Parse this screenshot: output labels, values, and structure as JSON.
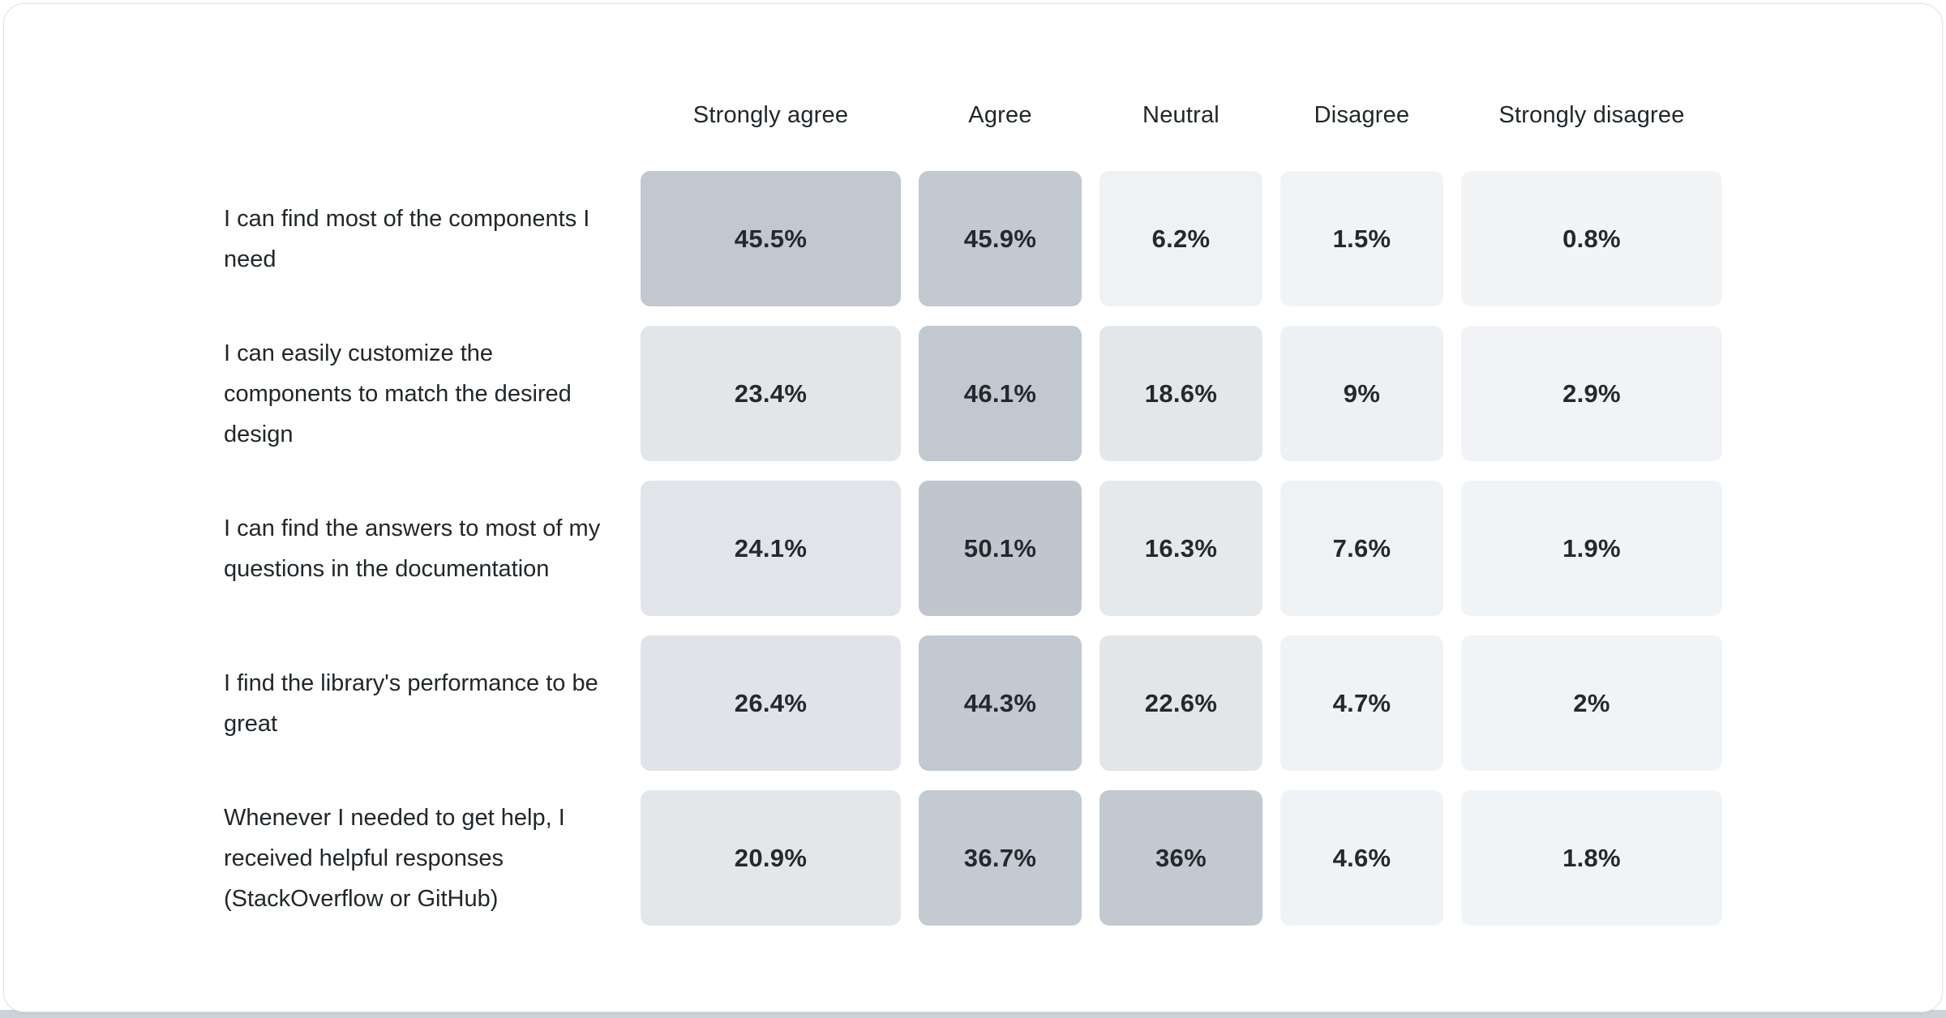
{
  "page": {
    "card_background": "#ffffff",
    "card_border_color": "#e1e4e7",
    "bottom_strip_color": "#ccd3d9",
    "text_color": "#21272a"
  },
  "chart_data": {
    "type": "heatmap",
    "title": "",
    "legend_position": "none",
    "value_range": [
      0,
      50.1
    ],
    "columns": [
      "Strongly agree",
      "Agree",
      "Neutral",
      "Disagree",
      "Strongly disagree"
    ],
    "rows": [
      {
        "question": "I can find most of the components I need",
        "values": [
          45.5,
          45.9,
          6.2,
          1.5,
          0.8
        ],
        "labels": [
          "45.5%",
          "45.9%",
          "6.2%",
          "1.5%",
          "0.8%"
        ],
        "colors": [
          "#c1c8d0",
          "#c2c9d0",
          "#eff2f5",
          "#f1f4f6",
          "#f2f4f6"
        ]
      },
      {
        "question": "I can easily customize the components to match the desired design",
        "values": [
          23.4,
          46.1,
          18.6,
          9,
          2.9
        ],
        "labels": [
          "23.4%",
          "46.1%",
          "18.6%",
          "9%",
          "2.9%"
        ],
        "colors": [
          "#e2e6e9",
          "#c1c8d0",
          "#e4e7ea",
          "#eef1f4",
          "#f1f3f6"
        ]
      },
      {
        "question": "I can find the answers to most of my questions in the documentation",
        "values": [
          24.1,
          50.1,
          16.3,
          7.6,
          1.9
        ],
        "labels": [
          "24.1%",
          "50.1%",
          "16.3%",
          "7.6%",
          "1.9%"
        ],
        "colors": [
          "#e1e5e9",
          "#bfc6ce",
          "#e6e9ec",
          "#eff2f4",
          "#f1f4f6"
        ]
      },
      {
        "question": "I find the library's performance to be great",
        "values": [
          26.4,
          44.3,
          22.6,
          4.7,
          2
        ],
        "labels": [
          "26.4%",
          "44.3%",
          "22.6%",
          "4.7%",
          "2%"
        ],
        "colors": [
          "#e0e4e8",
          "#c2c9d1",
          "#e2e6e9",
          "#f0f3f5",
          "#f1f4f6"
        ]
      },
      {
        "question": "Whenever I needed to get help, I received helpful responses (StackOverflow or GitHub)",
        "values": [
          20.9,
          36.7,
          36,
          4.6,
          1.8
        ],
        "labels": [
          "20.9%",
          "36.7%",
          "36%",
          "4.6%",
          "1.8%"
        ],
        "colors": [
          "#e3e7ea",
          "#c3cad2",
          "#c2c9d0",
          "#f0f3f5",
          "#f1f4f6"
        ]
      }
    ]
  }
}
